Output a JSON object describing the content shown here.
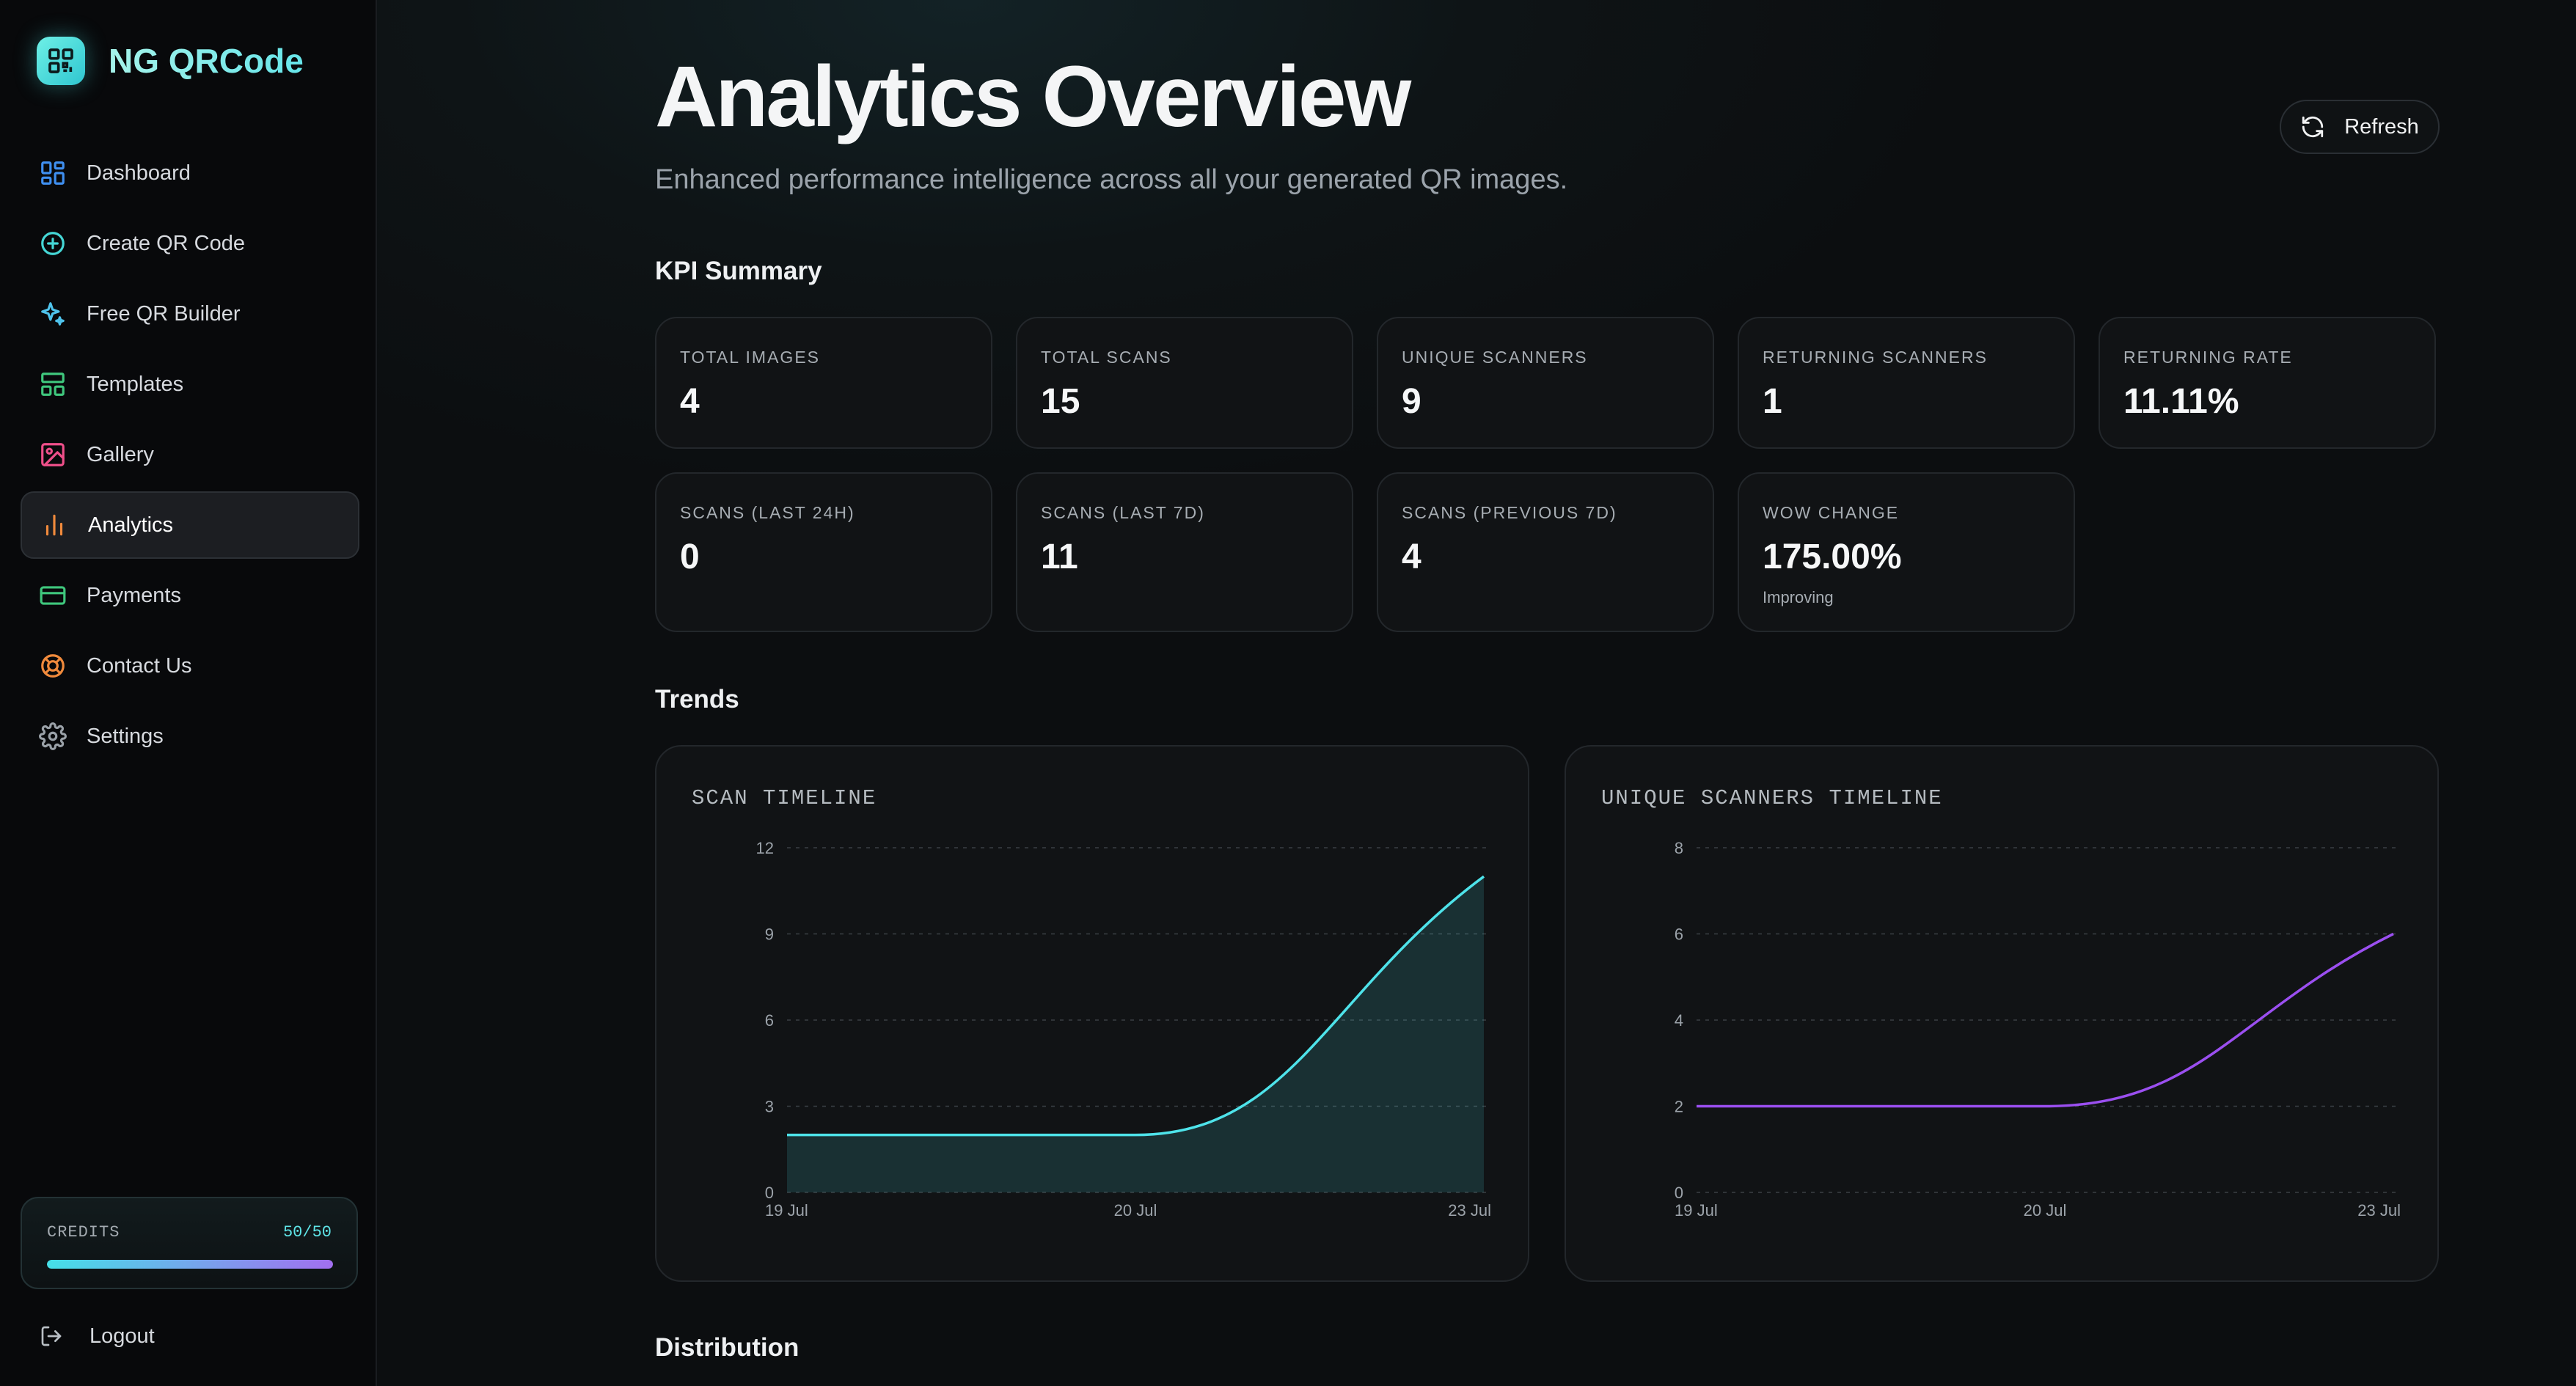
{
  "brand": {
    "name": "NG QRCode"
  },
  "nav": {
    "items": [
      {
        "label": "Dashboard",
        "icon": "dashboard-icon",
        "color": "#3f8ff0"
      },
      {
        "label": "Create QR Code",
        "icon": "plus-circle-icon",
        "color": "#45d7d6"
      },
      {
        "label": "Free QR Builder",
        "icon": "sparkles-icon",
        "color": "#4fc3ec"
      },
      {
        "label": "Templates",
        "icon": "templates-icon",
        "color": "#3fc77d"
      },
      {
        "label": "Gallery",
        "icon": "image-icon",
        "color": "#ef4f8a"
      },
      {
        "label": "Analytics",
        "icon": "bar-chart-icon",
        "color": "#f08a3c",
        "active": true
      },
      {
        "label": "Payments",
        "icon": "credit-card-icon",
        "color": "#3fc77d"
      },
      {
        "label": "Contact Us",
        "icon": "lifebuoy-icon",
        "color": "#f08a3c"
      },
      {
        "label": "Settings",
        "icon": "gear-icon",
        "color": "#9aa1a8"
      }
    ]
  },
  "credits": {
    "label": "CREDITS",
    "value": "50/50",
    "fraction": 1.0
  },
  "logout": {
    "label": "Logout"
  },
  "header": {
    "title": "Analytics Overview",
    "subtitle": "Enhanced performance intelligence across all your generated QR images.",
    "refresh_label": "Refresh"
  },
  "sections": {
    "kpi": "KPI Summary",
    "trends": "Trends",
    "distribution": "Distribution"
  },
  "kpis": [
    {
      "label": "TOTAL IMAGES",
      "value": "4"
    },
    {
      "label": "TOTAL SCANS",
      "value": "15"
    },
    {
      "label": "UNIQUE SCANNERS",
      "value": "9"
    },
    {
      "label": "RETURNING SCANNERS",
      "value": "1"
    },
    {
      "label": "RETURNING RATE",
      "value": "11.11%"
    },
    {
      "label": "SCANS (LAST 24H)",
      "value": "0"
    },
    {
      "label": "SCANS (LAST 7D)",
      "value": "11"
    },
    {
      "label": "SCANS (PREVIOUS 7D)",
      "value": "4"
    },
    {
      "label": "WOW CHANGE",
      "value": "175.00%",
      "note": "Improving"
    }
  ],
  "chart_data": [
    {
      "type": "area",
      "title": "SCAN TIMELINE",
      "x": [
        "19 Jul",
        "20 Jul",
        "23 Jul"
      ],
      "values": [
        2,
        2,
        11
      ],
      "ylim": [
        0,
        12
      ],
      "yticks": [
        0,
        3,
        6,
        9,
        12
      ],
      "grid": true,
      "color": "#4ee3ea"
    },
    {
      "type": "line",
      "title": "UNIQUE SCANNERS TIMELINE",
      "x": [
        "19 Jul",
        "20 Jul",
        "23 Jul"
      ],
      "values": [
        2,
        2,
        6
      ],
      "ylim": [
        0,
        8
      ],
      "yticks": [
        0,
        2,
        4,
        6,
        8
      ],
      "grid": true,
      "color": "#9b4ff0"
    }
  ]
}
